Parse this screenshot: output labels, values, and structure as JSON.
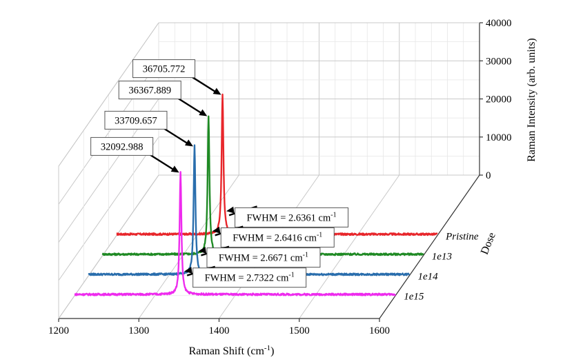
{
  "chart_data": {
    "type": "line",
    "subtype": "3d-waterfall",
    "xlabel": "Raman Shift (cm",
    "xlabel_sup": "-1",
    "xlabel_close": ")",
    "ylabel": "Raman Intensity (arb. units)",
    "zlabel": "Dose",
    "xlim": [
      1200,
      1600
    ],
    "x_ticks": [
      "1200",
      "1300",
      "1400",
      "1500",
      "1600"
    ],
    "ylim": [
      0,
      40000
    ],
    "y_ticks": [
      "0",
      "10000",
      "20000",
      "30000",
      "40000"
    ],
    "series": [
      {
        "name": "Pristine",
        "color": "#e8262b",
        "peak_x": 1332,
        "peak_intensity": 36705.772,
        "peak_label": "36705.772",
        "fwhm_text": "FWHM = 2.6361 cm",
        "fwhm_sup": "-1"
      },
      {
        "name": "1e13",
        "color": "#1f8a24",
        "peak_x": 1332,
        "peak_intensity": 36367.889,
        "peak_label": "36367.889",
        "fwhm_text": "FWHM = 2.6416 cm",
        "fwhm_sup": "-1"
      },
      {
        "name": "1e14",
        "color": "#2a6ead",
        "peak_x": 1332,
        "peak_intensity": 33709.657,
        "peak_label": "33709.657",
        "fwhm_text": "FWHM = 2.6671 cm",
        "fwhm_sup": "-1"
      },
      {
        "name": "1e15",
        "color": "#ee2bee",
        "peak_x": 1332,
        "peak_intensity": 32092.988,
        "peak_label": "32092.988",
        "fwhm_text": "FWHM = 2.7322 cm",
        "fwhm_sup": "-1"
      }
    ]
  }
}
